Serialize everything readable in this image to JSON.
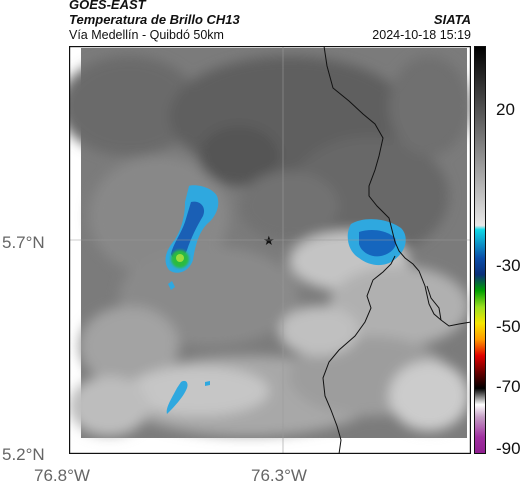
{
  "header": {
    "satellite": "GOES-EAST",
    "product": "Temperatura de Brillo CH13",
    "region": "Vía Medellín - Quibdó 50km",
    "org": "SIATA",
    "datetime": "2024-10-18 15:19"
  },
  "axes": {
    "y_labels": [
      "5.7°N",
      "5.2°N"
    ],
    "x_labels": [
      "76.8°W",
      "76.3°W"
    ]
  },
  "colorbar": {
    "labels": [
      "20",
      "-30",
      "-50",
      "-70",
      "-90"
    ]
  },
  "colors": {
    "frame": "#111111",
    "grid": "#9a9a9a",
    "cloud_cyan": "#1fa7e0",
    "cloud_blue": "#1560b8",
    "core_green": "#2fbf3a"
  }
}
